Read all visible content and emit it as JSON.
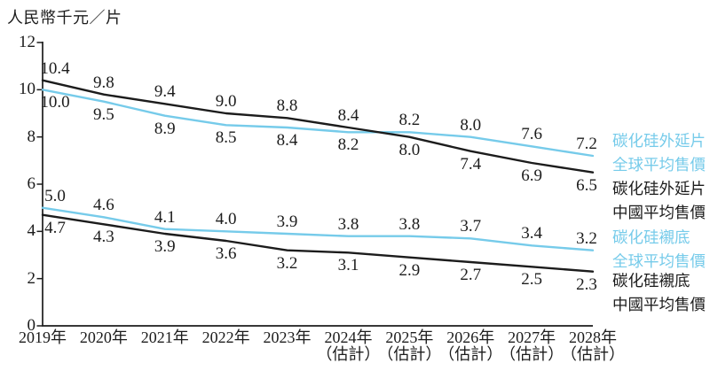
{
  "title": "人民幣千元／片",
  "colors": {
    "global_line": "#76CBEA",
    "china_line": "#1C1C1C",
    "axis": "#1C1C1C",
    "label_text": "#1C1C1C"
  },
  "chart_data": {
    "type": "line",
    "unit_label": "人民幣千元／片",
    "categories": [
      "2019年",
      "2020年",
      "2021年",
      "2022年",
      "2023年",
      "2024年",
      "2025年",
      "2026年",
      "2027年",
      "2028年"
    ],
    "category_notes": [
      "",
      "",
      "",
      "",
      "",
      "（估計）",
      "（估計）",
      "（估計）",
      "（估計）",
      "（估計）"
    ],
    "ylim": [
      0,
      12
    ],
    "yticks": [
      0,
      2,
      4,
      6,
      8,
      10,
      12
    ],
    "grid": false,
    "legend_position": "right",
    "series": [
      {
        "name": "碳化硅外延片全球平均售價",
        "legend_lines": [
          "碳化硅外延片",
          "全球平均售價"
        ],
        "color": "#76CBEA",
        "values": [
          10.0,
          9.5,
          8.9,
          8.5,
          8.4,
          8.2,
          8.2,
          8.0,
          7.6,
          7.2
        ],
        "label_sides": [
          "below",
          "below",
          "below",
          "below",
          "below",
          "below",
          "above",
          "above",
          "above",
          "above"
        ]
      },
      {
        "name": "碳化硅外延片中國平均售價",
        "legend_lines": [
          "碳化硅外延片",
          "中國平均售價"
        ],
        "color": "#1C1C1C",
        "values": [
          10.4,
          9.8,
          9.4,
          9.0,
          8.8,
          8.4,
          8.0,
          7.4,
          6.9,
          6.5
        ],
        "label_sides": [
          "above",
          "above",
          "above",
          "above",
          "above",
          "above",
          "below",
          "below",
          "below",
          "below"
        ]
      },
      {
        "name": "碳化硅襯底全球平均售價",
        "legend_lines": [
          "碳化硅襯底",
          "全球平均售價"
        ],
        "color": "#76CBEA",
        "values": [
          5.0,
          4.6,
          4.1,
          4.0,
          3.9,
          3.8,
          3.8,
          3.7,
          3.4,
          3.2
        ],
        "label_sides": [
          "above",
          "above",
          "above",
          "above",
          "above",
          "above",
          "above",
          "above",
          "above",
          "above"
        ]
      },
      {
        "name": "碳化硅襯底中國平均售價",
        "legend_lines": [
          "碳化硅襯底",
          "中國平均售價"
        ],
        "color": "#1C1C1C",
        "values": [
          4.7,
          4.3,
          3.9,
          3.6,
          3.2,
          3.1,
          2.9,
          2.7,
          2.5,
          2.3
        ],
        "label_sides": [
          "below",
          "below",
          "below",
          "below",
          "below",
          "below",
          "below",
          "below",
          "below",
          "below"
        ]
      }
    ]
  }
}
